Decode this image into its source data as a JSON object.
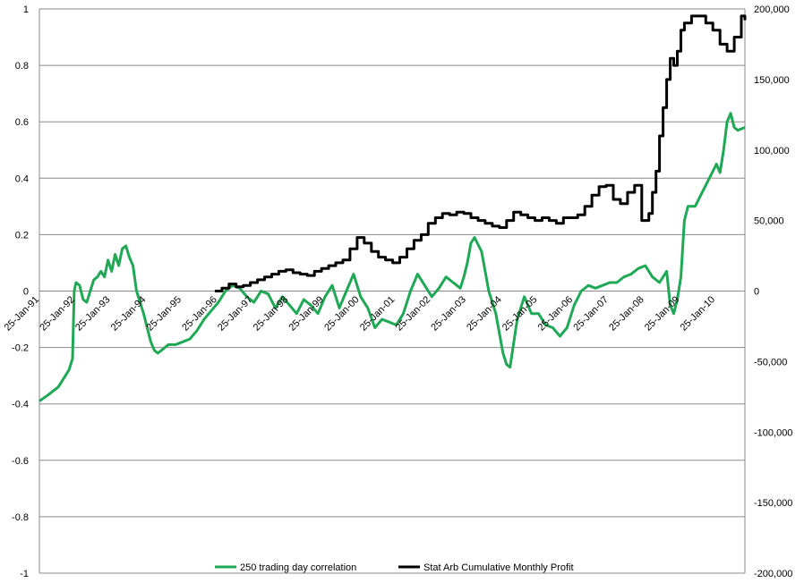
{
  "chart_data": {
    "type": "line",
    "title": "",
    "xlabel": "",
    "ylabel": "",
    "y_left": {
      "min": -1,
      "max": 1,
      "ticks": [
        "1",
        "0.8",
        "0.6",
        "0.4",
        "0.2",
        "0",
        "-0.2",
        "-0.4",
        "-0.6",
        "-0.8",
        "-1"
      ]
    },
    "y_right": {
      "min": -200000,
      "max": 200000,
      "ticks": [
        "200,000",
        "150,000",
        "100,000",
        "50,000",
        "0",
        "-50,000",
        "-100,000",
        "-150,000",
        "-200,000"
      ]
    },
    "x_ticks": [
      "25-Jan-91",
      "25-Jan-92",
      "25-Jan-93",
      "25-Jan-94",
      "25-Jan-95",
      "25-Jan-96",
      "25-Jan-97",
      "25-Jan-98",
      "25-Jan-99",
      "25-Jan-00",
      "25-Jan-01",
      "25-Jan-02",
      "25-Jan-03",
      "25-Jan-04",
      "25-Jan-05",
      "25-Jan-06",
      "25-Jan-07",
      "25-Jan-08",
      "25-Jan-09",
      "25-Jan-10"
    ],
    "x_range": [
      1991.07,
      2010.9
    ],
    "grid": true,
    "legend": "bottom",
    "series": [
      {
        "name": "250 trading day correlation",
        "axis": "left",
        "color": "#1fa855",
        "x": [
          1991.07,
          1991.3,
          1991.6,
          1991.9,
          1992.0,
          1992.05,
          1992.1,
          1992.2,
          1992.3,
          1992.4,
          1992.5,
          1992.6,
          1992.7,
          1992.8,
          1992.9,
          1993.0,
          1993.1,
          1993.2,
          1993.3,
          1993.4,
          1993.5,
          1993.6,
          1993.7,
          1993.8,
          1994.0,
          1994.1,
          1994.2,
          1994.3,
          1994.4,
          1994.5,
          1994.7,
          1994.9,
          1995.1,
          1995.3,
          1995.5,
          1995.7,
          1995.9,
          1996.1,
          1996.3,
          1996.5,
          1996.7,
          1996.9,
          1997.1,
          1997.3,
          1997.5,
          1997.7,
          1997.9,
          1998.1,
          1998.3,
          1998.5,
          1998.7,
          1998.9,
          1999.1,
          1999.3,
          1999.5,
          1999.7,
          1999.9,
          2000.1,
          2000.3,
          2000.5,
          2000.7,
          2000.9,
          2001.1,
          2001.3,
          2001.5,
          2001.7,
          2001.9,
          2002.1,
          2002.3,
          2002.5,
          2002.7,
          2002.9,
          2003.0,
          2003.1,
          2003.2,
          2003.3,
          2003.5,
          2003.7,
          2003.9,
          2004.0,
          2004.1,
          2004.2,
          2004.3,
          2004.5,
          2004.7,
          2004.9,
          2005.1,
          2005.3,
          2005.5,
          2005.7,
          2005.9,
          2006.1,
          2006.3,
          2006.5,
          2006.7,
          2006.9,
          2007.1,
          2007.3,
          2007.5,
          2007.7,
          2007.9,
          2008.1,
          2008.3,
          2008.5,
          2008.7,
          2008.8,
          2008.9,
          2009.0,
          2009.1,
          2009.2,
          2009.3,
          2009.5,
          2009.7,
          2009.9,
          2010.1,
          2010.2,
          2010.3,
          2010.4,
          2010.5,
          2010.6,
          2010.7,
          2010.9
        ],
        "values": [
          -0.39,
          -0.37,
          -0.34,
          -0.28,
          -0.24,
          0.0,
          0.03,
          0.02,
          -0.03,
          -0.04,
          0.0,
          0.04,
          0.05,
          0.07,
          0.05,
          0.11,
          0.07,
          0.13,
          0.09,
          0.15,
          0.16,
          0.12,
          0.09,
          0.0,
          -0.08,
          -0.13,
          -0.18,
          -0.21,
          -0.22,
          -0.21,
          -0.19,
          -0.19,
          -0.18,
          -0.17,
          -0.14,
          -0.1,
          -0.07,
          -0.04,
          0.0,
          0.02,
          0.01,
          -0.02,
          -0.04,
          0.0,
          -0.01,
          -0.06,
          -0.02,
          -0.05,
          -0.08,
          -0.03,
          -0.05,
          -0.08,
          -0.02,
          0.02,
          -0.06,
          0.0,
          0.06,
          -0.02,
          -0.06,
          -0.13,
          -0.1,
          -0.11,
          -0.12,
          -0.08,
          0.0,
          0.06,
          0.02,
          -0.02,
          0.01,
          0.05,
          0.03,
          0.01,
          0.05,
          0.1,
          0.17,
          0.19,
          0.14,
          0.0,
          -0.08,
          -0.15,
          -0.22,
          -0.26,
          -0.27,
          -0.1,
          -0.02,
          -0.08,
          -0.08,
          -0.12,
          -0.13,
          -0.16,
          -0.13,
          -0.05,
          0.0,
          0.02,
          0.01,
          0.02,
          0.03,
          0.03,
          0.05,
          0.06,
          0.08,
          0.09,
          0.05,
          0.03,
          0.07,
          -0.05,
          -0.08,
          -0.03,
          0.05,
          0.25,
          0.3,
          0.3,
          0.35,
          0.4,
          0.45,
          0.42,
          0.5,
          0.6,
          0.63,
          0.58,
          0.57,
          0.58
        ]
      },
      {
        "name": "Stat Arb Cumulative Monthly Profit",
        "axis": "right",
        "color": "#000000",
        "step": true,
        "x": [
          1996.0,
          1996.2,
          1996.4,
          1996.6,
          1996.8,
          1997.0,
          1997.2,
          1997.4,
          1997.6,
          1997.8,
          1998.0,
          1998.2,
          1998.4,
          1998.6,
          1998.8,
          1999.0,
          1999.2,
          1999.4,
          1999.6,
          1999.8,
          2000.0,
          2000.2,
          2000.4,
          2000.6,
          2000.8,
          2001.0,
          2001.2,
          2001.4,
          2001.6,
          2001.8,
          2002.0,
          2002.2,
          2002.4,
          2002.6,
          2002.8,
          2003.0,
          2003.2,
          2003.4,
          2003.6,
          2003.8,
          2004.0,
          2004.2,
          2004.4,
          2004.6,
          2004.8,
          2005.0,
          2005.2,
          2005.4,
          2005.6,
          2005.8,
          2006.0,
          2006.2,
          2006.4,
          2006.6,
          2006.8,
          2007.0,
          2007.2,
          2007.4,
          2007.6,
          2007.8,
          2008.0,
          2008.2,
          2008.3,
          2008.4,
          2008.5,
          2008.6,
          2008.7,
          2008.8,
          2008.9,
          2009.0,
          2009.1,
          2009.2,
          2009.4,
          2009.6,
          2009.8,
          2010.0,
          2010.2,
          2010.4,
          2010.6,
          2010.8,
          2010.9
        ],
        "values": [
          0,
          2000,
          5000,
          3000,
          4000,
          6000,
          8000,
          10000,
          12000,
          14000,
          15000,
          13000,
          12000,
          11000,
          14000,
          16000,
          18000,
          20000,
          22000,
          30000,
          38000,
          34000,
          28000,
          24000,
          22000,
          20000,
          24000,
          30000,
          36000,
          40000,
          48000,
          52000,
          55000,
          54000,
          56000,
          55000,
          52000,
          50000,
          48000,
          46000,
          45000,
          50000,
          56000,
          54000,
          52000,
          50000,
          52000,
          50000,
          48000,
          52000,
          52000,
          54000,
          60000,
          68000,
          74000,
          75000,
          65000,
          62000,
          70000,
          75000,
          50000,
          55000,
          70000,
          85000,
          110000,
          130000,
          150000,
          165000,
          160000,
          170000,
          185000,
          190000,
          195000,
          195000,
          190000,
          185000,
          175000,
          170000,
          180000,
          195000,
          192000
        ]
      }
    ]
  }
}
